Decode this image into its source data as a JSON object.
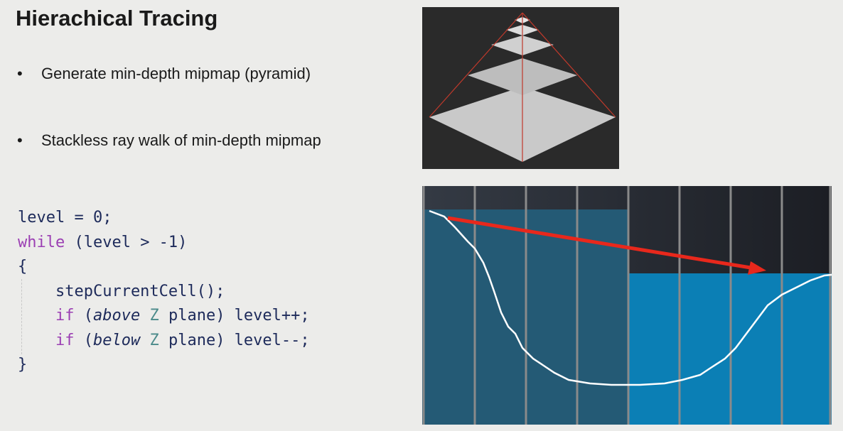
{
  "slide": {
    "title": "Hierachical Tracing",
    "bullets": [
      "Generate min-depth mipmap (pyramid)",
      "Stackless ray walk of min-depth mipmap"
    ],
    "code": {
      "line1": "level = 0;",
      "line2_kw": "while",
      "line2_rest": " (level > -1)",
      "line3": "{",
      "line4": "    stepCurrentCell();",
      "line5_kw": "    if",
      "line5_a": " (",
      "line5_it": "above",
      "line5_z": " Z",
      "line5_b": " plane) level++;",
      "line6_kw": "    if",
      "line6_a": " (",
      "line6_it": "below",
      "line6_z": " Z",
      "line6_b": " plane) level--;",
      "line7": "}"
    }
  },
  "colors": {
    "ray_arrow": "#e8281c",
    "depth_curve": "#ffffff",
    "coarse_cell": "#245a75",
    "fine_cell": "#0b7fb5",
    "background_dark": "#23272f"
  }
}
